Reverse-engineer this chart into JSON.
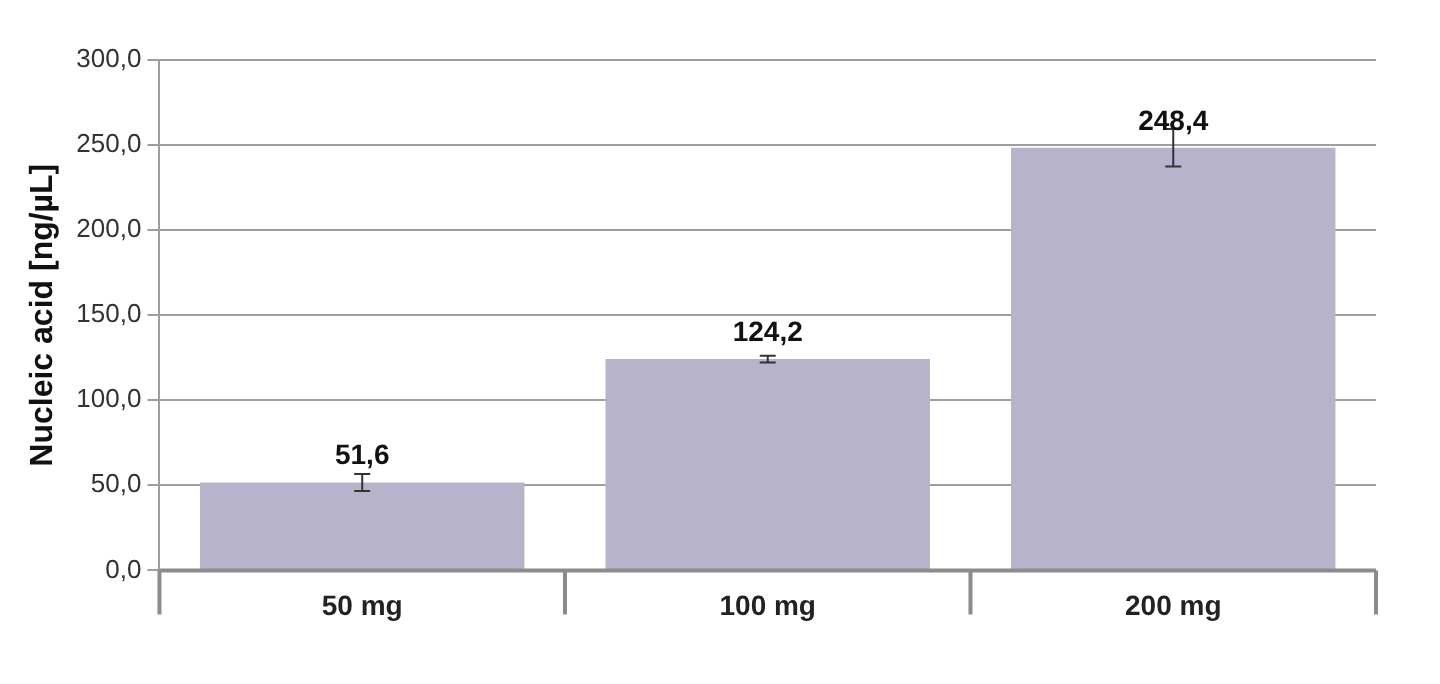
{
  "chart_data": {
    "type": "bar",
    "ylabel": "Nucleic acid [ng/µL]",
    "categories": [
      "50 mg",
      "100 mg",
      "200 mg"
    ],
    "values": [
      51.6,
      124.2,
      248.4
    ],
    "color": "#b6b3cb",
    "errors": [
      5,
      2,
      11
    ],
    "value_labels": [
      "51,6",
      "124,2",
      "248,4"
    ],
    "ylim": [
      0,
      300
    ],
    "yticks": [
      {
        "value": 0,
        "label": "0,0"
      },
      {
        "value": 50,
        "label": "50,0"
      },
      {
        "value": 100,
        "label": "100,0"
      },
      {
        "value": 150,
        "label": "150,0"
      },
      {
        "value": 200,
        "label": "200,0"
      },
      {
        "value": 250,
        "label": "250,0"
      },
      {
        "value": 300,
        "label": "300,0"
      }
    ],
    "grid": "y",
    "legend": false
  }
}
